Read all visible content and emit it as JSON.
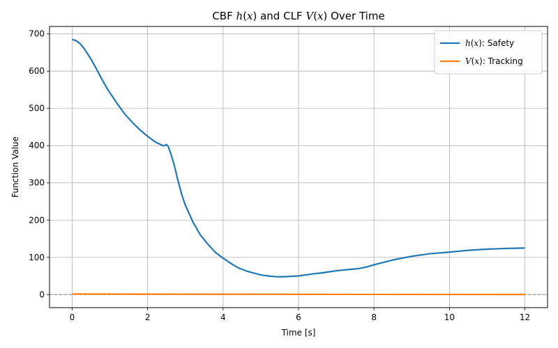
{
  "chart_data": {
    "type": "line",
    "title_parts": [
      {
        "text": "CBF ",
        "math": false
      },
      {
        "text": "h",
        "math": true
      },
      {
        "text": "(",
        "math": false
      },
      {
        "text": "x",
        "math": true
      },
      {
        "text": ") and CLF ",
        "math": false
      },
      {
        "text": "V",
        "math": true
      },
      {
        "text": "(",
        "math": false
      },
      {
        "text": "x",
        "math": true
      },
      {
        "text": ") Over Time",
        "math": false
      }
    ],
    "xlabel": "Time [s]",
    "ylabel": "Function Value",
    "xlim": [
      -0.6,
      12.6
    ],
    "ylim": [
      -35,
      720
    ],
    "xticks": [
      0,
      2,
      4,
      6,
      8,
      10,
      12
    ],
    "yticks": [
      0,
      100,
      200,
      300,
      400,
      500,
      600,
      700
    ],
    "grid": true,
    "legend_position": "top-right",
    "reference_line": {
      "y": 0,
      "style": "dashed",
      "color": "#808080"
    },
    "series": [
      {
        "name_parts": [
          {
            "text": "h",
            "math": true
          },
          {
            "text": "(",
            "math": false
          },
          {
            "text": "x",
            "math": true
          },
          {
            "text": "): Safety",
            "math": false
          }
        ],
        "color": "#1f77b4",
        "x": [
          0,
          0.1,
          0.2,
          0.3,
          0.4,
          0.5,
          0.6,
          0.7,
          0.8,
          0.9,
          1.0,
          1.2,
          1.4,
          1.6,
          1.8,
          2.0,
          2.2,
          2.4,
          2.45,
          2.5,
          2.55,
          2.6,
          2.7,
          2.8,
          2.9,
          3.0,
          3.2,
          3.4,
          3.6,
          3.8,
          4.0,
          4.2,
          4.4,
          4.6,
          4.8,
          5.0,
          5.2,
          5.4,
          5.6,
          5.8,
          6.0,
          6.2,
          6.4,
          6.6,
          6.8,
          7.0,
          7.2,
          7.4,
          7.6,
          7.8,
          8.0,
          8.5,
          9.0,
          9.5,
          10.0,
          10.5,
          11.0,
          11.5,
          12.0
        ],
        "y": [
          685,
          682,
          675,
          663,
          648,
          632,
          614,
          595,
          576,
          558,
          542,
          512,
          484,
          462,
          442,
          425,
          410,
          400,
          400,
          403,
          397,
          383,
          350,
          308,
          270,
          240,
          195,
          160,
          135,
          113,
          98,
          84,
          72,
          64,
          58,
          53,
          50,
          48,
          48,
          49,
          50,
          53,
          56,
          58,
          61,
          64,
          66,
          68,
          70,
          74,
          80,
          93,
          103,
          110,
          114,
          119,
          122,
          124,
          125
        ]
      },
      {
        "name_parts": [
          {
            "text": "V",
            "math": true
          },
          {
            "text": "(",
            "math": false
          },
          {
            "text": "x",
            "math": true
          },
          {
            "text": "): Tracking",
            "math": false
          }
        ],
        "color": "#ff7f0e",
        "x": [
          0,
          2,
          4,
          6,
          8,
          10,
          12
        ],
        "y": [
          1.5,
          1.2,
          1.0,
          0.8,
          0.6,
          0.4,
          0.3
        ]
      }
    ]
  }
}
